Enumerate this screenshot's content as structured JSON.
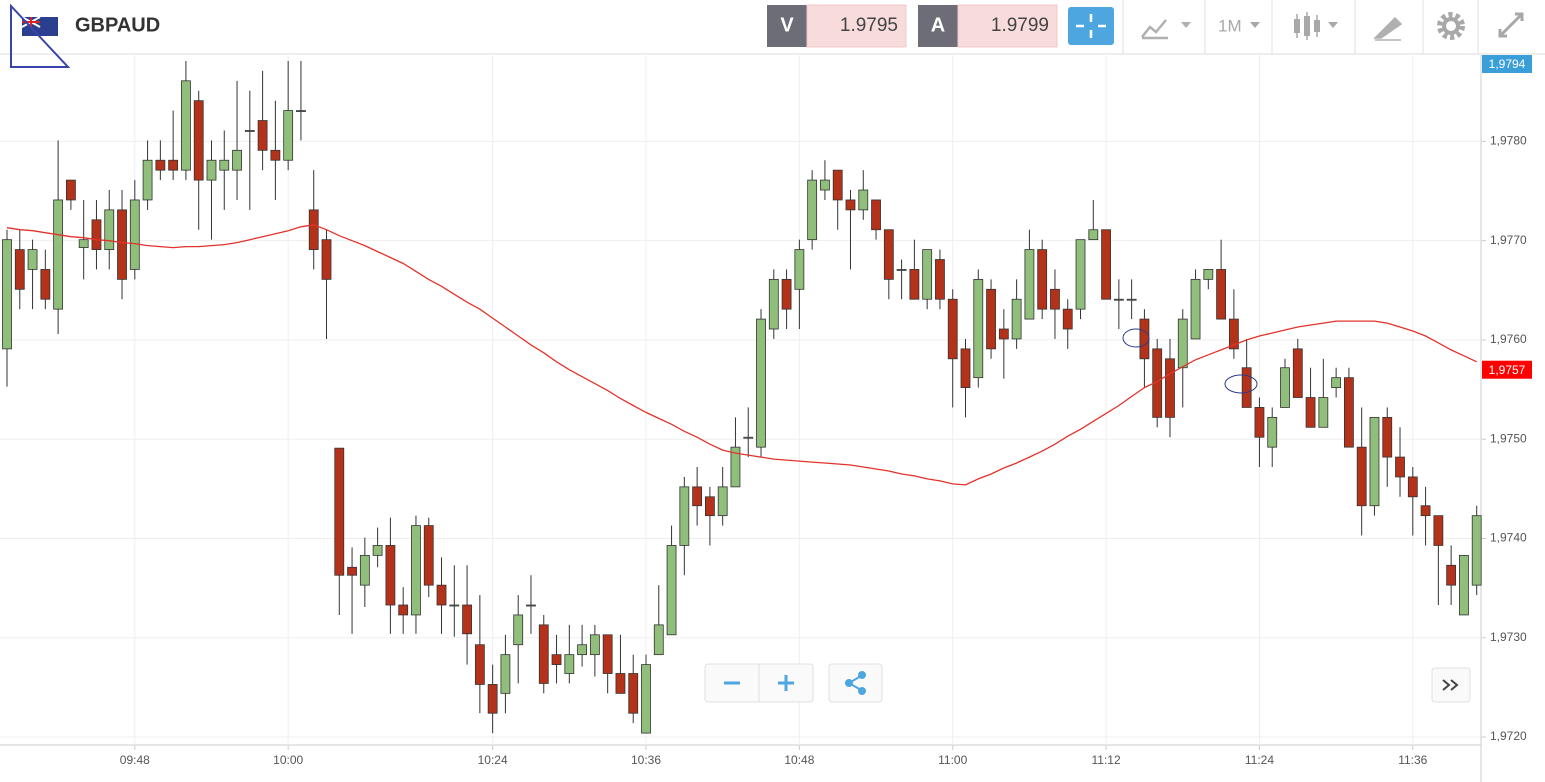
{
  "toolbar": {
    "symbol": "GBPAUD",
    "bid_label": "V",
    "bid": 1.9795,
    "ask_label": "A",
    "ask": 1.9799,
    "timeframe": "1M"
  },
  "chart_data": {
    "type": "candlestick",
    "categories": [
      null,
      null,
      null,
      null,
      null,
      null,
      null,
      null,
      null,
      null,
      "09:48",
      null,
      null,
      null,
      null,
      null,
      null,
      null,
      null,
      null,
      null,
      null,
      "10:00",
      null,
      null,
      null,
      null,
      null,
      null,
      null,
      null,
      null,
      null,
      null,
      null,
      null,
      null,
      null,
      "10:24",
      null,
      null,
      null,
      null,
      null,
      null,
      null,
      null,
      null,
      null,
      null,
      "10:36",
      null,
      null,
      null,
      null,
      null,
      null,
      null,
      null,
      null,
      null,
      null,
      "10:48",
      null,
      null,
      null,
      null,
      null,
      null,
      null,
      null,
      null,
      null,
      null,
      "11:00",
      null,
      null,
      null,
      null,
      null,
      null,
      null,
      null,
      null,
      null,
      null,
      "11:12",
      null,
      null,
      null,
      null,
      null,
      null,
      null,
      null,
      null,
      null,
      null,
      "11:24",
      null,
      null,
      null,
      null,
      null,
      null,
      null,
      null,
      null,
      null,
      null,
      "11:36",
      null,
      null,
      null,
      null,
      null
    ],
    "open": [
      1.97591,
      1.97691,
      1.97671,
      1.97671,
      1.97631,
      1.97761,
      1.97693,
      1.97721,
      1.97691,
      1.97731,
      1.97671,
      1.97741,
      1.97781,
      1.97781,
      1.97771,
      1.97841,
      1.97761,
      1.97771,
      1.97771,
      1.97811,
      1.97821,
      1.97791,
      1.97781,
      1.97831,
      1.97731,
      1.97701,
      1.97491,
      1.97371,
      1.97353,
      1.97383,
      1.97393,
      1.97333,
      1.97323,
      1.97413,
      1.97353,
      1.97333,
      1.97333,
      1.97293,
      1.97253,
      1.97244,
      1.97293,
      1.97333,
      1.97313,
      1.97283,
      1.97264,
      1.97283,
      1.97283,
      1.97303,
      1.97264,
      1.97264,
      1.97204,
      1.97283,
      1.97303,
      1.97393,
      1.97452,
      1.97442,
      1.97423,
      1.97452,
      1.97502,
      1.97492,
      1.97611,
      1.97661,
      1.97651,
      1.97701,
      1.97751,
      1.97771,
      1.97741,
      1.97731,
      1.97741,
      1.97711,
      1.97671,
      1.97671,
      1.97641,
      1.97681,
      1.97641,
      1.97591,
      1.97562,
      1.97651,
      1.97611,
      1.97601,
      1.97621,
      1.97691,
      1.97651,
      1.97631,
      1.97631,
      1.97701,
      1.97711,
      1.97641,
      1.97641,
      1.97621,
      1.97591,
      1.97581,
      1.97572,
      1.97601,
      1.97661,
      1.97671,
      1.97621,
      1.97572,
      1.97532,
      1.97492,
      1.97532,
      1.97591,
      1.97542,
      1.97512,
      1.97552,
      1.97562,
      1.97492,
      1.97433,
      1.97522,
      1.97482,
      1.97462,
      1.97433,
      1.97423,
      1.97373,
      1.97323,
      1.97353
    ],
    "high": [
      1.97711,
      1.97711,
      1.97701,
      1.97691,
      1.97801,
      1.97761,
      1.97741,
      1.97741,
      1.97751,
      1.97751,
      1.97761,
      1.97801,
      1.97801,
      1.97831,
      1.97881,
      1.97851,
      1.97801,
      1.97811,
      1.97861,
      1.97851,
      1.97871,
      1.97841,
      1.97881,
      1.97881,
      1.97771,
      1.97711,
      1.97491,
      1.97391,
      1.97401,
      1.97411,
      1.97421,
      1.97351,
      1.97423,
      1.97421,
      1.97381,
      1.97373,
      1.97373,
      1.97343,
      1.97273,
      1.97303,
      1.97343,
      1.97363,
      1.97323,
      1.97303,
      1.97313,
      1.97313,
      1.97313,
      1.97303,
      1.97303,
      1.97283,
      1.97283,
      1.97353,
      1.97413,
      1.97462,
      1.97472,
      1.97452,
      1.97472,
      1.97522,
      1.97532,
      1.97631,
      1.97671,
      1.97671,
      1.97701,
      1.97771,
      1.97781,
      1.97771,
      1.97751,
      1.97771,
      1.97741,
      1.97711,
      1.97681,
      1.97701,
      1.97691,
      1.97691,
      1.97651,
      1.97601,
      1.97671,
      1.97661,
      1.97631,
      1.97661,
      1.97711,
      1.97701,
      1.97671,
      1.97641,
      1.97701,
      1.97741,
      1.97711,
      1.97661,
      1.97661,
      1.97631,
      1.97601,
      1.97601,
      1.97631,
      1.97671,
      1.97671,
      1.97701,
      1.97651,
      1.97601,
      1.97542,
      1.97532,
      1.97581,
      1.97601,
      1.97572,
      1.97581,
      1.97572,
      1.97572,
      1.97532,
      1.97522,
      1.97532,
      1.97512,
      1.97472,
      1.97452,
      1.97423,
      1.97393,
      1.97383,
      1.97433
    ],
    "low": [
      1.97553,
      1.97631,
      1.97631,
      1.97631,
      1.97606,
      1.97731,
      1.97661,
      1.97671,
      1.97671,
      1.97641,
      1.97661,
      1.97731,
      1.97761,
      1.97761,
      1.97761,
      1.97711,
      1.97701,
      1.97731,
      1.97741,
      1.97731,
      1.97771,
      1.97741,
      1.97771,
      1.97801,
      1.97671,
      1.97601,
      1.97323,
      1.97304,
      1.97331,
      1.97371,
      1.97304,
      1.97304,
      1.97304,
      1.97341,
      1.97304,
      1.97301,
      1.97273,
      1.97224,
      1.97204,
      1.97224,
      1.97254,
      1.97304,
      1.97244,
      1.97254,
      1.97254,
      1.97271,
      1.97261,
      1.97244,
      1.97244,
      1.97214,
      1.97204,
      1.97283,
      1.97303,
      1.97363,
      1.97413,
      1.97393,
      1.97413,
      1.97452,
      1.97482,
      1.97482,
      1.97601,
      1.97611,
      1.97611,
      1.97691,
      1.97741,
      1.97711,
      1.97671,
      1.97721,
      1.97701,
      1.97641,
      1.97641,
      1.97641,
      1.97631,
      1.97631,
      1.97532,
      1.97522,
      1.97552,
      1.97581,
      1.97561,
      1.97591,
      1.97621,
      1.97621,
      1.97601,
      1.97591,
      1.97621,
      1.97701,
      1.97641,
      1.97611,
      1.97621,
      1.97552,
      1.97512,
      1.97502,
      1.97532,
      1.97601,
      1.97651,
      1.97621,
      1.97581,
      1.97532,
      1.97472,
      1.97472,
      1.97532,
      1.97542,
      1.97512,
      1.97512,
      1.97542,
      1.97492,
      1.97403,
      1.97423,
      1.97452,
      1.97442,
      1.97403,
      1.97393,
      1.97333,
      1.97333,
      1.97323,
      1.97343
    ],
    "close": [
      1.97701,
      1.97651,
      1.97691,
      1.97641,
      1.97741,
      1.97741,
      1.97701,
      1.97691,
      1.97731,
      1.97661,
      1.97741,
      1.97781,
      1.97771,
      1.97771,
      1.97861,
      1.97761,
      1.97781,
      1.97781,
      1.97791,
      1.97811,
      1.97791,
      1.97781,
      1.97831,
      1.97831,
      1.97691,
      1.97661,
      1.97363,
      1.97363,
      1.97383,
      1.97393,
      1.97333,
      1.97323,
      1.97413,
      1.97353,
      1.97333,
      1.97333,
      1.97304,
      1.97253,
      1.97224,
      1.97283,
      1.97323,
      1.97333,
      1.97254,
      1.97273,
      1.97283,
      1.97293,
      1.97303,
      1.97264,
      1.97244,
      1.97224,
      1.97273,
      1.97313,
      1.97393,
      1.97452,
      1.97433,
      1.97423,
      1.97452,
      1.97492,
      1.97502,
      1.97621,
      1.97661,
      1.97631,
      1.97691,
      1.97761,
      1.97761,
      1.97741,
      1.97731,
      1.97751,
      1.97711,
      1.97661,
      1.97671,
      1.97641,
      1.97691,
      1.97641,
      1.97581,
      1.97552,
      1.97661,
      1.97591,
      1.97601,
      1.97641,
      1.97691,
      1.97631,
      1.97631,
      1.97611,
      1.97701,
      1.97711,
      1.97641,
      1.97641,
      1.97641,
      1.97581,
      1.97522,
      1.97522,
      1.97621,
      1.97661,
      1.97671,
      1.97621,
      1.97591,
      1.97532,
      1.97502,
      1.97522,
      1.97572,
      1.97542,
      1.97512,
      1.97542,
      1.97562,
      1.97492,
      1.97433,
      1.97522,
      1.97482,
      1.97462,
      1.97442,
      1.97423,
      1.97393,
      1.97353,
      1.97383,
      1.97423
    ],
    "up_color": "#8fbf7b",
    "down_color": "#b5321a",
    "line_overlay": {
      "color": "#e3322b",
      "values": [
        1.97713,
        1.97711,
        1.9771,
        1.97708,
        1.97706,
        1.97704,
        1.97703,
        1.97701,
        1.977,
        1.97698,
        1.97697,
        1.97695,
        1.97694,
        1.97693,
        1.97694,
        1.97694,
        1.97695,
        1.97696,
        1.97698,
        1.97701,
        1.97704,
        1.97707,
        1.9771,
        1.97714,
        1.97716,
        1.97711,
        1.97705,
        1.977,
        1.97695,
        1.97689,
        1.97683,
        1.97677,
        1.97669,
        1.97661,
        1.97654,
        1.97646,
        1.97638,
        1.97631,
        1.97622,
        1.97613,
        1.97604,
        1.97595,
        1.97587,
        1.97578,
        1.9757,
        1.97563,
        1.97556,
        1.97549,
        1.97541,
        1.97534,
        1.97527,
        1.97521,
        1.97515,
        1.97508,
        1.97502,
        1.97495,
        1.97489,
        1.97486,
        1.97484,
        1.97482,
        1.9748,
        1.97479,
        1.97478,
        1.97477,
        1.97476,
        1.97475,
        1.97474,
        1.97472,
        1.9747,
        1.97468,
        1.97465,
        1.97463,
        1.9746,
        1.97458,
        1.97455,
        1.97454,
        1.9746,
        1.97465,
        1.97471,
        1.97476,
        1.97482,
        1.97488,
        1.97495,
        1.97503,
        1.9751,
        1.97518,
        1.97526,
        1.97534,
        1.97543,
        1.97552,
        1.97558,
        1.97566,
        1.97573,
        1.9758,
        1.97585,
        1.9759,
        1.97595,
        1.976,
        1.97604,
        1.97607,
        1.9761,
        1.97613,
        1.97615,
        1.97617,
        1.97619,
        1.97619,
        1.97619,
        1.97619,
        1.97617,
        1.97613,
        1.97609,
        1.97604,
        1.97597,
        1.9759,
        1.97584,
        1.97578
      ]
    },
    "ylim": [
      1.97192,
      1.97887
    ],
    "yticks": [
      {
        "value": 1.972,
        "label": "1,9720"
      },
      {
        "value": 1.973,
        "label": "1,9730"
      },
      {
        "value": 1.974,
        "label": "1,9740"
      },
      {
        "value": 1.975,
        "label": "1,9750"
      },
      {
        "value": 1.976,
        "label": "1,9760"
      },
      {
        "value": 1.977,
        "label": "1,9770"
      },
      {
        "value": 1.978,
        "label": "1,9780"
      }
    ],
    "price_markers": [
      {
        "value": 1.9794,
        "label": "1,9794",
        "color": "#3a9fd8"
      },
      {
        "value": 1.9757,
        "label": "1,9757",
        "color": "#ff0000"
      }
    ],
    "grid": true
  }
}
